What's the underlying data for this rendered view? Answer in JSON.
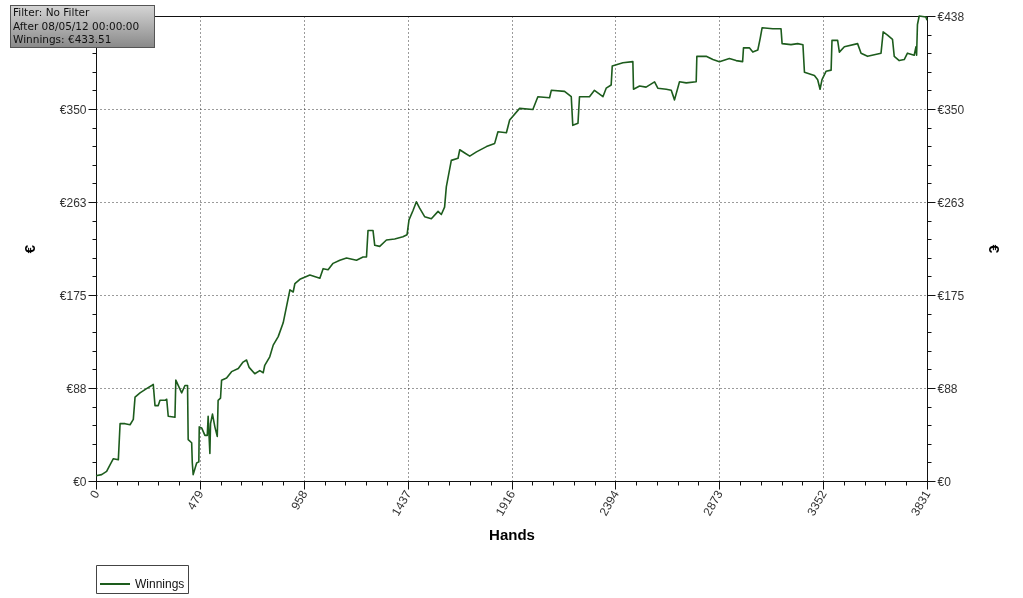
{
  "chart_data": {
    "type": "line",
    "xlabel": "Hands",
    "ylabel": "€",
    "y2label": "€",
    "annotations": [
      "Filter: No Filter",
      "After 08/05/12 00:00:00",
      "Winnings: €433.51"
    ],
    "x": [
      0,
      26,
      49,
      64,
      80,
      103,
      111,
      134,
      157,
      172,
      180,
      203,
      233,
      257,
      264,
      272,
      287,
      295,
      318,
      326,
      333,
      364,
      368,
      379,
      395,
      410,
      422,
      425,
      441,
      444,
      448,
      464,
      474,
      476,
      487,
      502,
      513,
      517,
      525,
      528,
      537,
      548,
      559,
      563,
      574,
      579,
      602,
      625,
      656,
      678,
      694,
      706,
      732,
      755,
      771,
      778,
      801,
      817,
      840,
      863,
      878,
      894,
      909,
      917,
      940,
      986,
      1032,
      1047,
      1070,
      1093,
      1124,
      1155,
      1201,
      1231,
      1247,
      1254,
      1277,
      1285,
      1308,
      1339,
      1377,
      1415,
      1434,
      1443,
      1462,
      1477,
      1492,
      1515,
      1546,
      1577,
      1592,
      1607,
      1615,
      1638,
      1669,
      1677,
      1700,
      1723,
      1754,
      1800,
      1838,
      1853,
      1892,
      1907,
      1953,
      2014,
      2037,
      2091,
      2099,
      2160,
      2191,
      2198,
      2222,
      2229,
      2275,
      2298,
      2337,
      2352,
      2375,
      2380,
      2429,
      2475,
      2478,
      2506,
      2536,
      2575,
      2590,
      2629,
      2652,
      2667,
      2690,
      2721,
      2767,
      2770,
      2813,
      2844,
      2874,
      2920,
      2951,
      2981,
      2985,
      3012,
      3028,
      3051,
      3062,
      3071,
      3120,
      3158,
      3163,
      3204,
      3235,
      3259,
      3266,
      3312,
      3327,
      3338,
      3347,
      3366,
      3389,
      3393,
      3419,
      3427,
      3450,
      3511,
      3527,
      3557,
      3619,
      3629,
      3649,
      3672,
      3680,
      3703,
      3726,
      3741,
      3772,
      3780,
      3783,
      3787,
      3795,
      3826,
      3831
    ],
    "series": [
      {
        "name": "Winnings",
        "color": "#1d5c1d",
        "values": [
          5,
          6,
          9,
          15,
          21,
          20,
          54,
          54,
          53,
          58,
          79,
          83,
          87,
          90,
          91,
          71,
          71,
          76,
          76,
          77,
          61,
          60,
          95,
          90,
          83,
          90,
          90,
          39,
          36,
          17,
          6,
          17,
          18,
          51,
          50,
          43,
          43,
          61,
          26,
          54,
          63,
          51,
          42,
          76,
          78,
          95,
          97,
          103,
          106,
          112,
          114,
          107,
          101,
          104,
          102,
          109,
          117,
          128,
          136,
          149,
          164,
          180,
          178,
          186,
          190,
          194,
          191,
          200,
          199,
          205,
          208,
          210,
          208,
          211,
          211,
          236,
          236,
          222,
          221,
          227,
          228,
          230,
          232,
          246,
          255,
          263,
          257,
          249,
          247,
          254,
          251,
          258,
          277,
          302,
          304,
          312,
          309,
          306,
          310,
          315,
          318,
          329,
          328,
          340,
          351,
          350,
          362,
          361,
          368,
          367,
          362,
          335,
          337,
          362,
          362,
          368,
          362,
          370,
          373,
          391,
          394,
          395,
          369,
          372,
          371,
          376,
          370,
          369,
          368,
          359,
          376,
          375,
          376,
          400,
          400,
          397,
          395,
          398,
          396,
          395,
          408,
          408,
          404,
          406,
          417,
          427,
          426,
          426,
          412,
          411,
          412,
          411,
          385,
          382,
          378,
          369,
          378,
          386,
          387,
          415,
          415,
          404,
          409,
          412,
          403,
          400,
          403,
          423,
          420,
          416,
          400,
          396,
          397,
          403,
          401,
          409,
          401,
          430,
          438,
          437,
          434
        ]
      }
    ],
    "xlim": [
      0,
      3831
    ],
    "xticks": [
      0,
      {
        "value": 95.8,
        "label": null
      },
      {
        "value": 191.6,
        "label": null
      },
      {
        "value": 287.3,
        "label": null
      },
      {
        "value": 383.1,
        "label": null
      },
      479,
      {
        "value": 574.7,
        "label": null
      },
      {
        "value": 670.4,
        "label": null
      },
      {
        "value": 766.2,
        "label": null
      },
      {
        "value": 862,
        "label": null
      },
      958,
      {
        "value": 1053.5,
        "label": null
      },
      {
        "value": 1149.3,
        "label": null
      },
      {
        "value": 1245.1,
        "label": null
      },
      {
        "value": 1340.9,
        "label": null
      },
      1437,
      {
        "value": 1532.4,
        "label": null
      },
      {
        "value": 1628.2,
        "label": null
      },
      {
        "value": 1724,
        "label": null
      },
      {
        "value": 1819.7,
        "label": null
      },
      1916,
      {
        "value": 2011.3,
        "label": null
      },
      {
        "value": 2107,
        "label": null
      },
      {
        "value": 2202.8,
        "label": null
      },
      {
        "value": 2298.6,
        "label": null
      },
      2394,
      {
        "value": 2490.2,
        "label": null
      },
      {
        "value": 2586,
        "label": null
      },
      {
        "value": 2681.7,
        "label": null
      },
      {
        "value": 2777.5,
        "label": null
      },
      2873,
      {
        "value": 2969,
        "label": null
      },
      {
        "value": 3064.8,
        "label": null
      },
      {
        "value": 3160.6,
        "label": null
      },
      {
        "value": 3256.4,
        "label": null
      },
      3352,
      {
        "value": 3447.9,
        "label": null
      },
      {
        "value": 3543.7,
        "label": null
      },
      {
        "value": 3639.5,
        "label": null
      },
      {
        "value": 3735.2,
        "label": null
      },
      3831
    ],
    "ylim": [
      0,
      438
    ],
    "yticks": [
      {
        "value": 0,
        "label": "€0"
      },
      {
        "value": 17.5,
        "label": null
      },
      {
        "value": 35,
        "label": null
      },
      {
        "value": 52.6,
        "label": null
      },
      {
        "value": 70.1,
        "label": null
      },
      {
        "value": 87.6,
        "label": "€88"
      },
      {
        "value": 105.1,
        "label": null
      },
      {
        "value": 122.6,
        "label": null
      },
      {
        "value": 140.2,
        "label": null
      },
      {
        "value": 157.7,
        "label": null
      },
      {
        "value": 175.2,
        "label": "€175"
      },
      {
        "value": 192.7,
        "label": null
      },
      {
        "value": 210.2,
        "label": null
      },
      {
        "value": 227.8,
        "label": null
      },
      {
        "value": 245.3,
        "label": null
      },
      {
        "value": 262.8,
        "label": "€263"
      },
      {
        "value": 280.3,
        "label": null
      },
      {
        "value": 297.8,
        "label": null
      },
      {
        "value": 315.4,
        "label": null
      },
      {
        "value": 332.9,
        "label": null
      },
      {
        "value": 350.4,
        "label": "€350"
      },
      {
        "value": 367.9,
        "label": null
      },
      {
        "value": 385.4,
        "label": null
      },
      {
        "value": 403,
        "label": null
      },
      {
        "value": 420.5,
        "label": null
      }
    ],
    "y2lim": [
      0,
      438
    ],
    "y2ticks": [
      {
        "value": 0,
        "label": "€0"
      },
      {
        "value": 17.5,
        "label": null
      },
      {
        "value": 35,
        "label": null
      },
      {
        "value": 52.6,
        "label": null
      },
      {
        "value": 70.1,
        "label": null
      },
      {
        "value": 87.6,
        "label": "€88"
      },
      {
        "value": 105.1,
        "label": null
      },
      {
        "value": 122.6,
        "label": null
      },
      {
        "value": 140.2,
        "label": null
      },
      {
        "value": 157.7,
        "label": null
      },
      {
        "value": 175.2,
        "label": "€175"
      },
      {
        "value": 192.7,
        "label": null
      },
      {
        "value": 210.2,
        "label": null
      },
      {
        "value": 227.8,
        "label": null
      },
      {
        "value": 245.3,
        "label": null
      },
      {
        "value": 262.8,
        "label": "€263"
      },
      {
        "value": 280.3,
        "label": null
      },
      {
        "value": 297.8,
        "label": null
      },
      {
        "value": 315.4,
        "label": null
      },
      {
        "value": 332.9,
        "label": null
      },
      {
        "value": 350.4,
        "label": "€350"
      },
      {
        "value": 367.9,
        "label": null
      },
      {
        "value": 385.4,
        "label": null
      },
      {
        "value": 403,
        "label": null
      },
      {
        "value": 420.5,
        "label": null
      },
      {
        "value": 438,
        "label": "€438"
      }
    ],
    "grid": true,
    "legend": "bottom left"
  }
}
